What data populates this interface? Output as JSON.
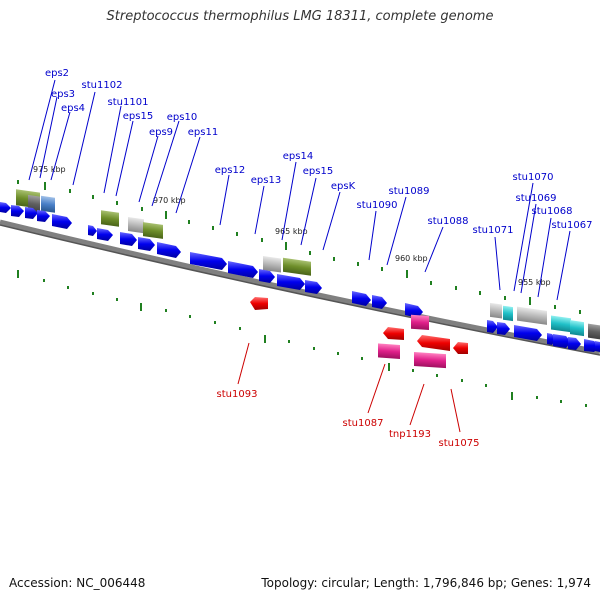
{
  "title": "Streptococcus thermophilus LMG 18311, complete genome",
  "footer": {
    "accession": "Accession: NC_006448",
    "topology": "Topology: circular; Length: 1,796,846 bp; Genes: 1,974"
  },
  "scale_labels": [
    "975 kbp",
    "970 kbp",
    "965 kbp",
    "960 kbp",
    "955 kbp"
  ],
  "gene_labels_top": [
    "eps2",
    "eps3",
    "eps4",
    "stu1102",
    "stu1101",
    "eps15",
    "eps9",
    "eps10",
    "eps11",
    "eps12",
    "eps13",
    "eps14",
    "eps15",
    "epsK",
    "stu1090",
    "stu1089",
    "stu1088",
    "stu1071",
    "stu1070",
    "stu1069",
    "stu1068",
    "stu1067"
  ],
  "gene_labels_bottom": [
    "stu1093",
    "stu1087",
    "tnp1193",
    "stu1075"
  ],
  "colors": {
    "forward_gene": "#0000ee",
    "reverse_gene": "#ee0000",
    "label_top": "#0000cc",
    "label_bottom": "#cc0000",
    "backbone": "#808080",
    "tick": "#208020"
  }
}
